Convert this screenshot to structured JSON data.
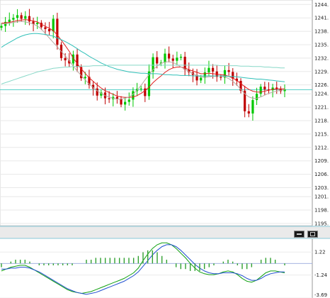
{
  "chart_data": [
    {
      "type": "candlestick",
      "y_ticks": [
        "1244.",
        "1241.",
        "1238.",
        "1235.",
        "1232.",
        "1229.",
        "1226.",
        "1224.",
        "1221.",
        "1218.",
        "1215.",
        "1212.",
        "1209.",
        "1206.",
        "1203.",
        "1201.",
        "1198.",
        "1195."
      ],
      "ylim": [
        1194.5,
        1245.0
      ],
      "current_price_line": 1224.9,
      "grid": true,
      "close": [
        1239.2,
        1240.1,
        1240.6,
        1241.0,
        1241.6,
        1240.8,
        1241.4,
        1240.2,
        1239.6,
        1239.9,
        1238.9,
        1238.5,
        1238.0,
        1240.8,
        1235.0,
        1232.0,
        1231.5,
        1230.8,
        1232.8,
        1230.0,
        1227.5,
        1227.8,
        1226.0,
        1225.2,
        1223.6,
        1224.3,
        1223.0,
        1222.8,
        1223.3,
        1222.9,
        1221.6,
        1222.2,
        1222.7,
        1224.6,
        1225.1,
        1225.2,
        1223.5,
        1229.0,
        1232.2,
        1230.8,
        1231.0,
        1233.0,
        1231.9,
        1231.4,
        1232.1,
        1232.3,
        1229.4,
        1228.8,
        1228.2,
        1227.0,
        1227.6,
        1228.8,
        1229.8,
        1229.0,
        1227.8,
        1227.6,
        1229.3,
        1228.9,
        1227.4,
        1226.9,
        1224.7,
        1220.1,
        1219.6,
        1222.6,
        1224.0,
        1225.6,
        1225.0,
        1224.8,
        1225.4,
        1225.1,
        1224.6,
        1225.0
      ],
      "series": [
        {
          "name": "",
          "color": "#e02020",
          "values": [
            1239.8,
            1239.9,
            1240.0,
            1240.2,
            1240.4,
            1240.5,
            1240.6,
            1240.5,
            1240.3,
            1240.1,
            1239.6,
            1239.1,
            1238.7,
            1238.1,
            1237.2,
            1236.0,
            1234.8,
            1233.5,
            1232.0,
            1230.8,
            1229.6,
            1228.6,
            1227.6,
            1226.8,
            1226.0,
            1225.3,
            1224.7,
            1224.3,
            1223.9,
            1223.5,
            1223.3,
            1223.2,
            1223.2,
            1223.3,
            1223.6,
            1224.1,
            1224.7,
            1225.5,
            1226.5,
            1227.3,
            1228.0,
            1228.8,
            1229.4,
            1229.8,
            1230.0,
            1230.0,
            1229.8,
            1229.4,
            1229.1,
            1228.8,
            1228.5,
            1228.5,
            1228.6,
            1228.5,
            1228.4,
            1228.3,
            1228.2,
            1227.9,
            1227.5,
            1227.0,
            1226.3,
            1225.6,
            1225.0,
            1224.6,
            1224.4,
            1224.4,
            1224.6,
            1224.8,
            1225.0,
            1225.1,
            1225.1,
            1225.1
          ]
        },
        {
          "name": "",
          "color": "#b8a8a0",
          "values": [
            1239.6,
            1239.7,
            1239.8,
            1240.0,
            1240.1,
            1240.2,
            1240.1,
            1239.9,
            1239.6,
            1239.2,
            1238.5,
            1237.5,
            1236.5,
            1235.5,
            1234.5,
            1233.5,
            1232.5,
            1231.4,
            1230.2,
            1229.1,
            1228.1,
            1227.1,
            1226.2,
            1225.4,
            1224.7,
            1224.1,
            1223.6,
            1223.3,
            1223.0,
            1222.8,
            1222.8,
            1223.0,
            1223.3,
            1223.9,
            1224.8,
            1225.9,
            1227.1,
            1228.3,
            1229.4,
            1230.2,
            1230.8,
            1231.1,
            1231.2,
            1231.0,
            1230.6,
            1230.0,
            1229.5,
            1229.0,
            1228.5,
            1228.1,
            1227.8,
            1227.7,
            1227.8,
            1227.9,
            1228.0,
            1228.0,
            1227.8,
            1227.4,
            1226.8,
            1226.0,
            1225.0,
            1224.0,
            1223.3,
            1223.0,
            1223.0,
            1223.3,
            1223.7,
            1224.1,
            1224.4,
            1224.6,
            1224.8,
            1224.9
          ]
        },
        {
          "name": "",
          "color": "#30c0b8",
          "values": [
            1234.4,
            1235.0,
            1235.5,
            1236.0,
            1236.5,
            1236.9,
            1237.2,
            1237.4,
            1237.5,
            1237.5,
            1237.4,
            1237.3,
            1237.1,
            1236.9,
            1236.5,
            1236.1,
            1235.7,
            1235.2,
            1234.7,
            1234.1,
            1233.5,
            1233.0,
            1232.4,
            1231.9,
            1231.4,
            1230.9,
            1230.5,
            1230.1,
            1229.8,
            1229.5,
            1229.3,
            1229.1,
            1228.9,
            1228.8,
            1228.7,
            1228.6,
            1228.6,
            1228.5,
            1228.5,
            1228.5,
            1228.4,
            1228.3,
            1228.3,
            1228.2,
            1228.2,
            1228.1,
            1228.1,
            1228.1,
            1228.0,
            1228.0,
            1228.0,
            1228.0,
            1228.0,
            1228.0,
            1228.0,
            1228.0,
            1228.0,
            1227.9,
            1227.9,
            1227.8,
            1227.7,
            1227.6,
            1227.5,
            1227.4,
            1227.3,
            1227.3,
            1227.2,
            1227.1,
            1227.0,
            1226.9,
            1226.8,
            1226.7
          ]
        },
        {
          "name": "",
          "color": "#88d8c8",
          "values": [
            1226.2,
            1226.5,
            1226.8,
            1227.1,
            1227.4,
            1227.7,
            1228.0,
            1228.3,
            1228.6,
            1228.9,
            1229.1,
            1229.3,
            1229.5,
            1229.7,
            1229.8,
            1229.9,
            1230.0,
            1230.0,
            1230.1,
            1230.1,
            1230.2,
            1230.2,
            1230.2,
            1230.3,
            1230.3,
            1230.3,
            1230.3,
            1230.4,
            1230.4,
            1230.4,
            1230.4,
            1230.4,
            1230.4,
            1230.4,
            1230.4,
            1230.4,
            1230.4,
            1230.4,
            1230.4,
            1230.4,
            1230.4,
            1230.4,
            1230.4,
            1230.4,
            1230.4,
            1230.4,
            1230.4,
            1230.4,
            1230.4,
            1230.4,
            1230.4,
            1230.4,
            1230.4,
            1230.4,
            1230.4,
            1230.3,
            1230.3,
            1230.3,
            1230.3,
            1230.3,
            1230.2,
            1230.2,
            1230.2,
            1230.1,
            1230.1,
            1230.1,
            1230.0,
            1230.0,
            1229.9,
            1229.9,
            1229.8,
            1229.8
          ]
        }
      ]
    },
    {
      "type": "line",
      "y_ticks": [
        "1.22",
        "-1.24",
        "-3.69"
      ],
      "ylim": [
        -3.69,
        2.6
      ],
      "zero_line": 0,
      "series": [
        {
          "name": "",
          "color": "#10a010",
          "values": [
            -0.8,
            -0.6,
            -0.4,
            -0.3,
            -0.2,
            -0.2,
            -0.4,
            -0.7,
            -1.0,
            -1.3,
            -1.6,
            -1.9,
            -2.2,
            -2.5,
            -2.8,
            -3.0,
            -3.1,
            -3.2,
            -3.1,
            -3.0,
            -2.8,
            -2.6,
            -2.4,
            -2.2,
            -2.0,
            -1.8,
            -1.6,
            -1.3,
            -1.0,
            -0.5,
            0.3,
            1.0,
            1.6,
            2.0,
            2.2,
            2.2,
            2.0,
            1.6,
            1.1,
            0.6,
            0.0,
            -0.5,
            -0.9,
            -1.1,
            -1.2,
            -1.2,
            -1.1,
            -0.9,
            -0.8,
            -0.9,
            -1.2,
            -1.6,
            -1.9,
            -2.0,
            -1.8,
            -1.4,
            -1.0,
            -0.8,
            -0.8,
            -0.9,
            -1.0
          ]
        },
        {
          "name": "",
          "color": "#2050d0",
          "values": [
            -0.6,
            -0.6,
            -0.5,
            -0.5,
            -0.4,
            -0.4,
            -0.5,
            -0.7,
            -0.9,
            -1.2,
            -1.5,
            -1.8,
            -2.1,
            -2.4,
            -2.7,
            -2.9,
            -3.1,
            -3.2,
            -3.3,
            -3.2,
            -3.1,
            -2.9,
            -2.7,
            -2.5,
            -2.3,
            -2.1,
            -1.9,
            -1.6,
            -1.3,
            -0.9,
            -0.3,
            0.3,
            0.9,
            1.4,
            1.8,
            2.0,
            2.0,
            1.8,
            1.4,
            0.9,
            0.4,
            -0.1,
            -0.5,
            -0.8,
            -1.0,
            -1.1,
            -1.1,
            -1.0,
            -1.0,
            -1.0,
            -1.1,
            -1.3,
            -1.6,
            -1.8,
            -1.8,
            -1.6,
            -1.3,
            -1.1,
            -1.0,
            -0.9,
            -0.9
          ]
        },
        {
          "name": "",
          "color": "#30a030",
          "type": "histogram",
          "values": [
            -0.2,
            0.0,
            0.1,
            0.2,
            0.2,
            0.2,
            0.1,
            0.0,
            -0.1,
            -0.1,
            -0.1,
            -0.1,
            -0.1,
            -0.1,
            -0.1,
            -0.1,
            0.0,
            0.0,
            0.2,
            0.2,
            0.3,
            0.3,
            0.3,
            0.3,
            0.3,
            0.3,
            0.3,
            0.3,
            0.3,
            0.4,
            0.6,
            0.7,
            0.7,
            0.6,
            0.4,
            0.2,
            0.0,
            -0.2,
            -0.3,
            -0.3,
            -0.4,
            -0.4,
            -0.4,
            -0.3,
            -0.2,
            -0.1,
            0.0,
            0.1,
            0.2,
            0.1,
            -0.1,
            -0.3,
            -0.3,
            -0.2,
            0.0,
            0.2,
            0.3,
            0.3,
            0.2,
            0.0,
            -0.1
          ]
        }
      ]
    }
  ],
  "window_controls": {
    "minimize_icon": "minimize-icon",
    "maximize_icon": "maximize-icon"
  }
}
